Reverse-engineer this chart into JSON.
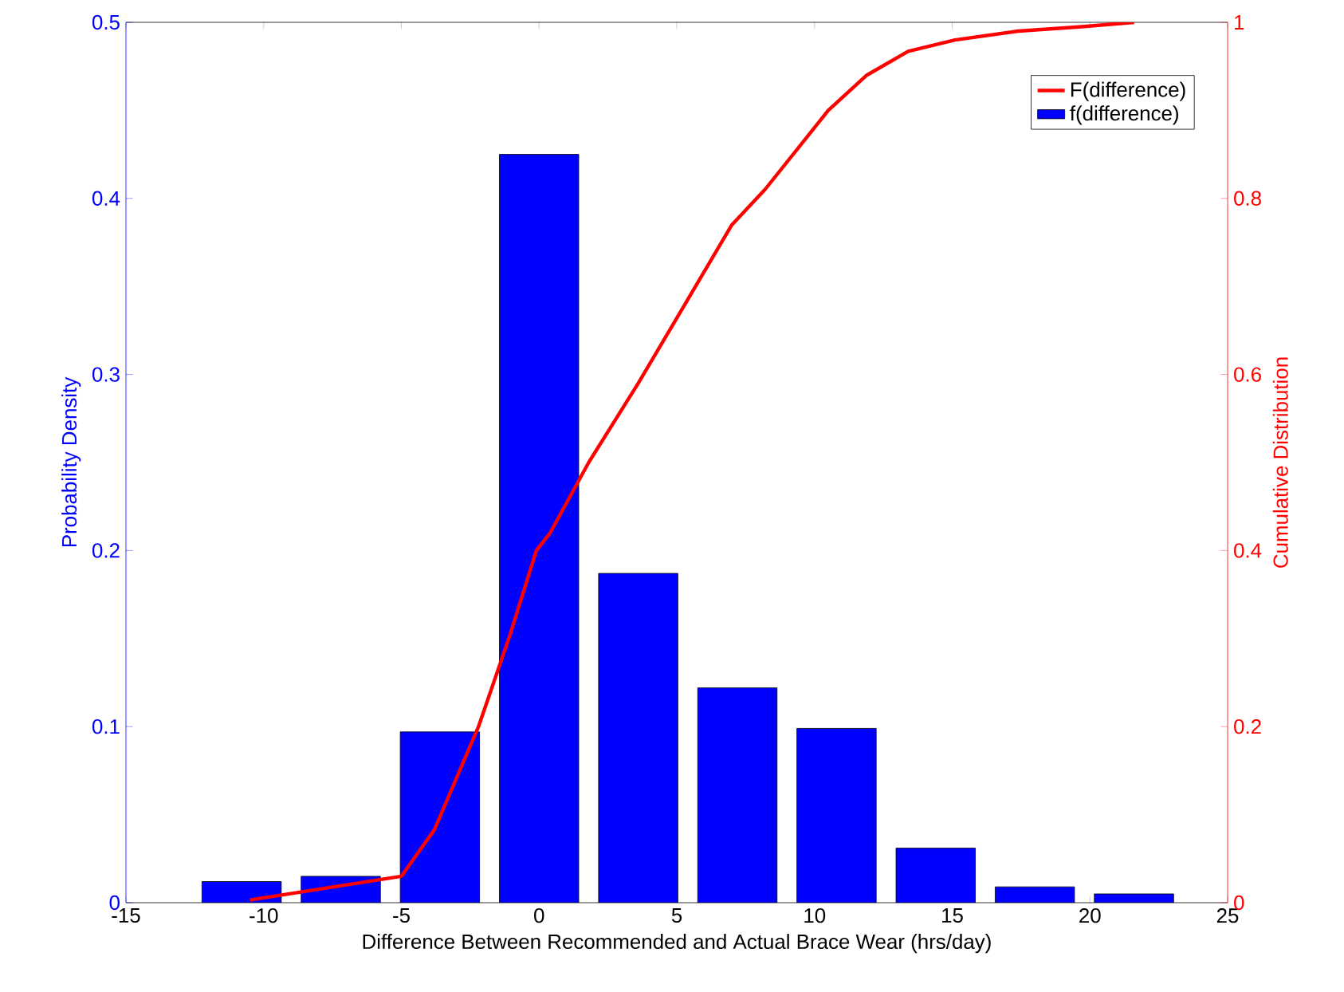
{
  "chart_data": {
    "type": "bar",
    "xlabel": "Difference Between Recommended and Actual Brace Wear (hrs/day)",
    "ylabel": "Probability Density",
    "y2label": "Cumulative Distribution",
    "xlim": [
      -15,
      25
    ],
    "xticks": [
      -15,
      -10,
      -5,
      0,
      5,
      10,
      15,
      20,
      25
    ],
    "ylim": [
      0,
      0.5
    ],
    "yticks": [
      0,
      0.1,
      0.2,
      0.3,
      0.4,
      0.5
    ],
    "y2lim": [
      0,
      1
    ],
    "y2ticks": [
      0,
      0.2,
      0.4,
      0.6,
      0.8,
      1
    ],
    "legend": "top right",
    "series": [
      {
        "name": "F(difference)",
        "type": "line",
        "axis": "y2",
        "color": "#ff0000",
        "x": [
          -10.5,
          -5,
          -3.8,
          -2.2,
          -1.1,
          -0.1,
          0.4,
          1.8,
          3.6,
          5.3,
          7.0,
          8.2,
          10.5,
          11.9,
          13.4,
          15.1,
          17.4,
          19.7,
          21.6
        ],
        "values": [
          0.003,
          0.03,
          0.083,
          0.2,
          0.3,
          0.4,
          0.42,
          0.5,
          0.59,
          0.68,
          0.77,
          0.81,
          0.9,
          0.94,
          0.967,
          0.98,
          0.99,
          0.995,
          1
        ]
      },
      {
        "name": "f(difference)",
        "type": "bar",
        "color": "#0000ff",
        "x": [
          -10.8,
          -7.2,
          -3.6,
          0,
          3.6,
          7.2,
          10.8,
          14.4,
          18,
          21.6
        ],
        "values": [
          0.012,
          0.015,
          0.097,
          0.425,
          0.187,
          0.122,
          0.099,
          0.031,
          0.009,
          0.005
        ]
      }
    ]
  }
}
